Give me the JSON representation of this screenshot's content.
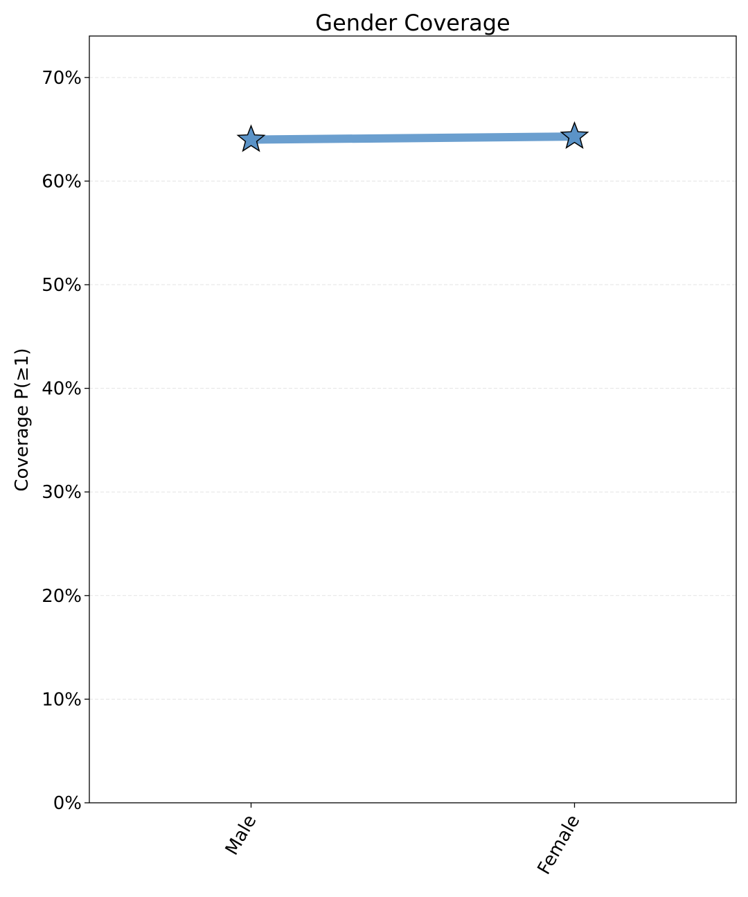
{
  "chart_data": {
    "type": "line",
    "title": "Gender Coverage",
    "xlabel": "",
    "ylabel": "Coverage P(≥1)",
    "categories": [
      "Male",
      "Female"
    ],
    "values": [
      64.0,
      64.3
    ],
    "ylim": [
      0,
      74
    ],
    "yticks": [
      0,
      10,
      20,
      30,
      40,
      50,
      60,
      70
    ],
    "ytick_labels": [
      "0%",
      "10%",
      "20%",
      "30%",
      "40%",
      "50%",
      "60%",
      "70%"
    ],
    "grid": "horizontal dashed",
    "marker": "star",
    "line_color": "#6b9fcf",
    "marker_color": "#5b93c7",
    "marker_edge_color": "#000000",
    "legend": "none"
  }
}
